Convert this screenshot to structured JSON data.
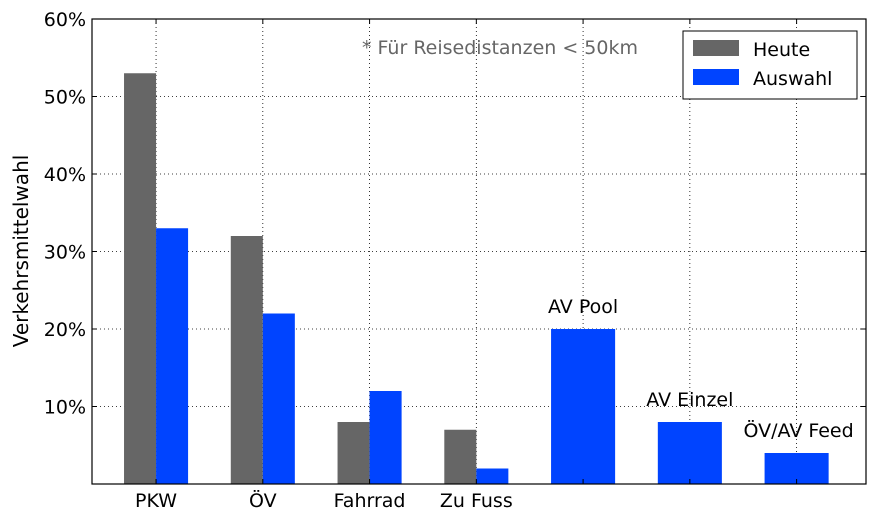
{
  "chart_data": {
    "type": "bar",
    "title": "",
    "xlabel": "",
    "ylabel": "Verkehrsmittelwahl",
    "note": "* Für Reisedistanzen < 50km",
    "ylim": [
      0,
      60
    ],
    "yticks": [
      10,
      20,
      30,
      40,
      50,
      60
    ],
    "ytick_labels": [
      "10%",
      "20%",
      "30%",
      "40%",
      "50%",
      "60%"
    ],
    "grid": true,
    "legend_position": "top-right",
    "categories": [
      "PKW",
      "ÖV",
      "Fahrrad",
      "Zu Fuss"
    ],
    "series": [
      {
        "name": "Heute",
        "color": "#666666",
        "values": [
          53,
          32,
          8,
          7
        ]
      },
      {
        "name": "Auswahl",
        "color": "#0044ff",
        "values": [
          33,
          22,
          12,
          2
        ]
      }
    ],
    "extra_bars": [
      {
        "label": "AV Pool",
        "value": 20,
        "color": "#0044ff"
      },
      {
        "label": "AV Einzel",
        "value": 8,
        "color": "#0044ff"
      },
      {
        "label": "ÖV/AV Feed",
        "value": 4,
        "color": "#0044ff"
      }
    ]
  }
}
